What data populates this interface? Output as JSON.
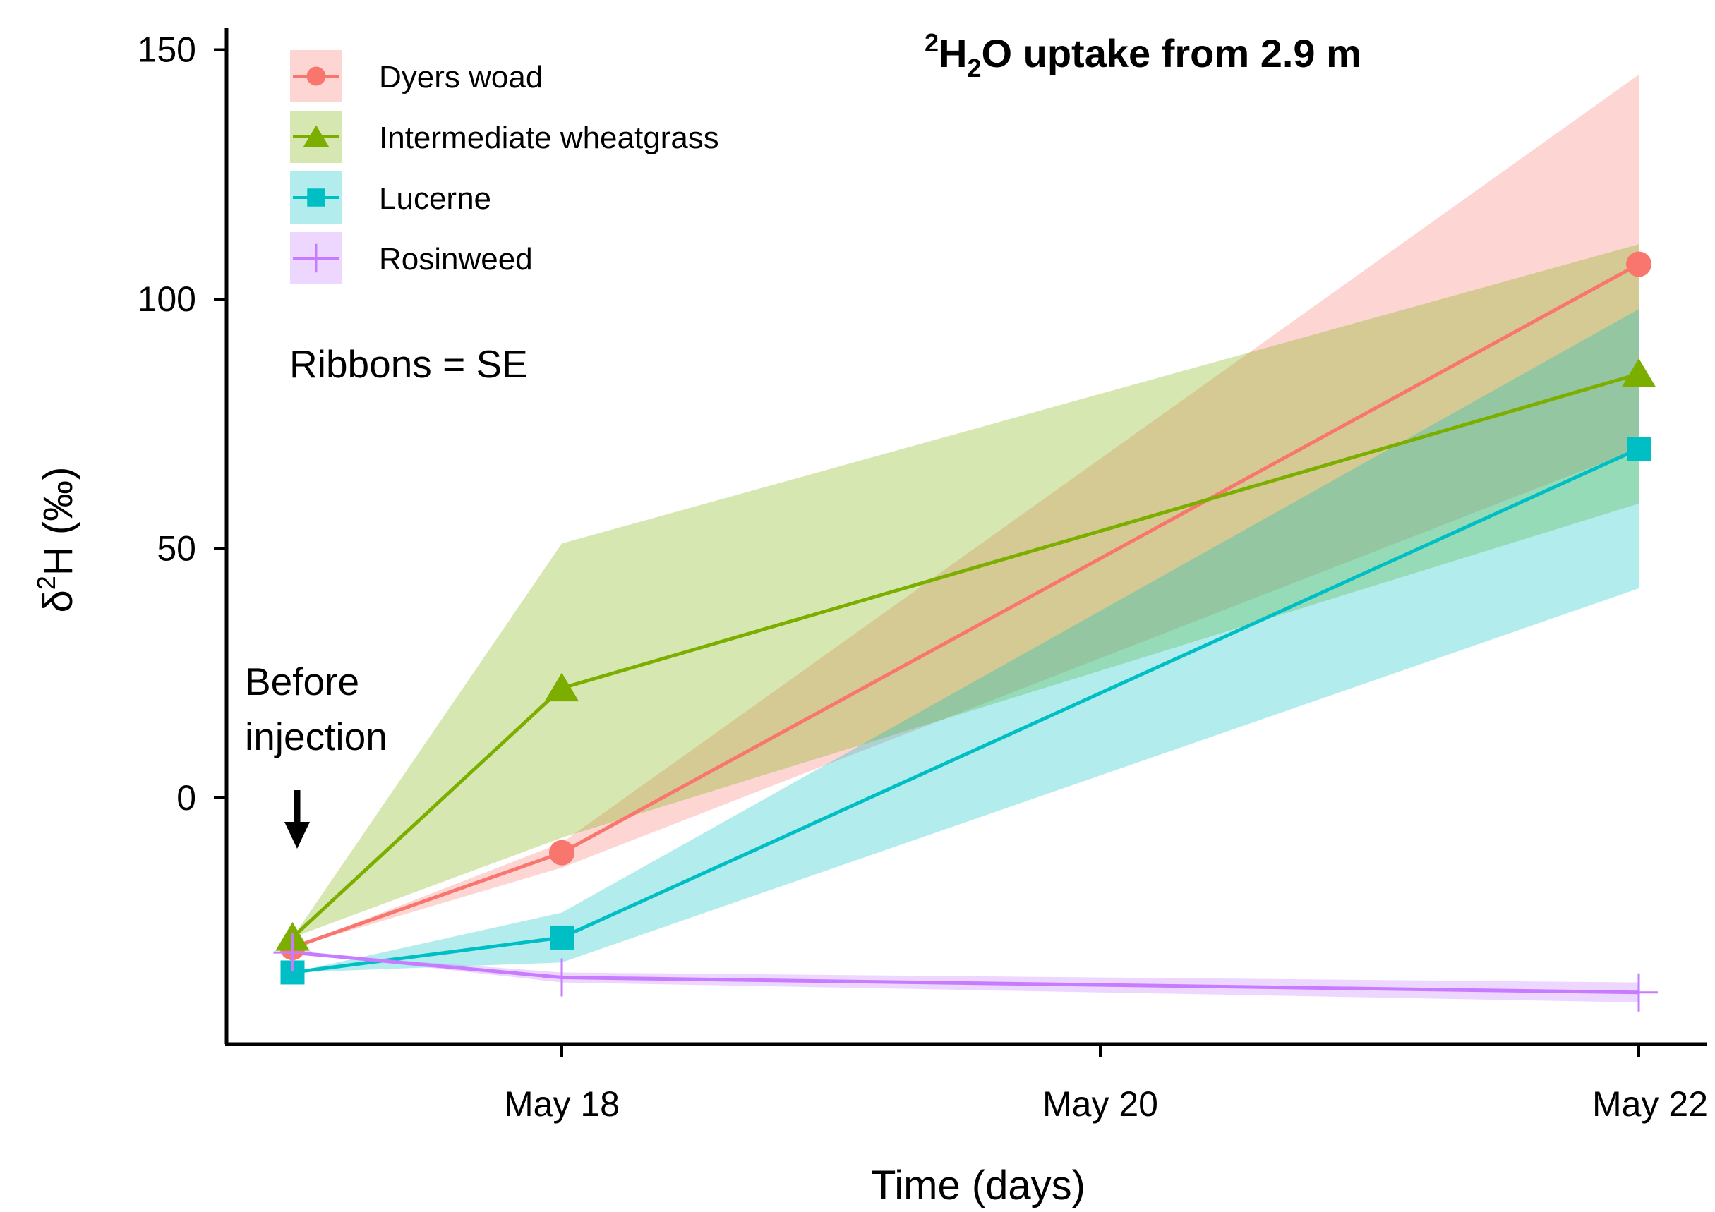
{
  "chart_data": {
    "type": "line",
    "title_parts": {
      "sup": "2",
      "H": "H",
      "sub": "2",
      "rest": "O uptake from 2.9 m"
    },
    "xlabel": "Time (days)",
    "ylabel_parts": {
      "delta": "δ",
      "sup": "2",
      "rest": "H (‰)"
    },
    "x_ticks": [
      "May 18",
      "May 20",
      "May 22"
    ],
    "x": [
      "May 17",
      "May 18",
      "May 22"
    ],
    "ylim": [
      -50,
      155
    ],
    "y_ticks": [
      0,
      50,
      100,
      150
    ],
    "ribbons_note": "Ribbons = SE",
    "annotation": "Before\ninjection",
    "series": [
      {
        "name": "Dyers woad",
        "color": "#F8766D",
        "marker": "circle",
        "values": [
          -30,
          -11,
          107
        ],
        "lower": [
          -30,
          -14,
          70
        ],
        "upper": [
          -30,
          -9,
          145
        ]
      },
      {
        "name": "Intermediate wheatgrass",
        "color": "#7CAE00",
        "marker": "triangle",
        "values": [
          -28,
          22,
          85
        ],
        "lower": [
          -28,
          -8,
          59
        ],
        "upper": [
          -28,
          51,
          111
        ]
      },
      {
        "name": "Lucerne",
        "color": "#00BFC4",
        "marker": "square",
        "values": [
          -35,
          -28,
          70
        ],
        "lower": [
          -35,
          -33,
          42
        ],
        "upper": [
          -35,
          -23,
          98
        ]
      },
      {
        "name": "Rosinweed",
        "color": "#C77CFF",
        "marker": "plus",
        "values": [
          -31,
          -36,
          -39
        ],
        "lower": [
          -31,
          -37,
          -41
        ],
        "upper": [
          -31,
          -35,
          -37
        ]
      }
    ]
  }
}
